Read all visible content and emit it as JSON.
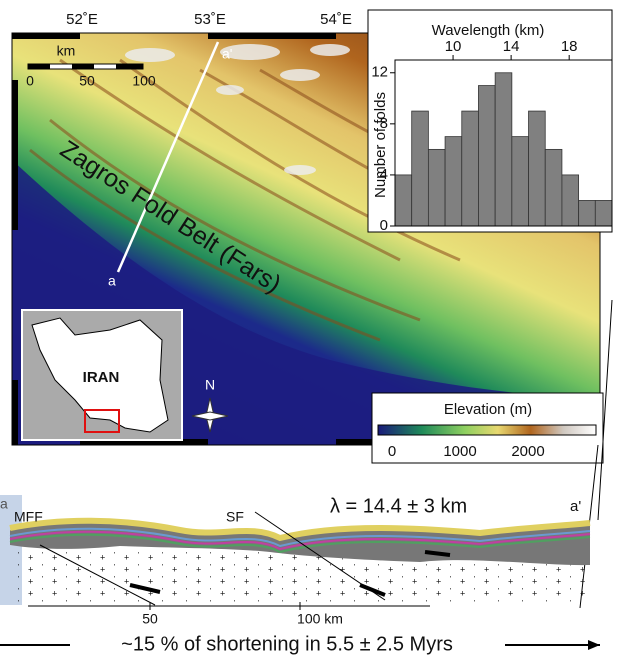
{
  "chart_data": {
    "type": "histogram",
    "xlabel": "Wavelength (km)",
    "ylabel": "Number of folds",
    "bins": [
      6,
      7.15,
      8.3,
      9.45,
      10.6,
      11.75,
      12.9,
      14.05,
      15.2,
      16.35,
      17.5,
      18.65,
      19.8,
      20.95
    ],
    "values": [
      4,
      9,
      6,
      7,
      9,
      11,
      12,
      7,
      9,
      6,
      4,
      2,
      2
    ],
    "color": "#808080",
    "xlim": [
      6,
      20.95
    ],
    "xticks": [
      10,
      14,
      18
    ],
    "ylim": [
      0,
      13
    ],
    "yticks": [
      0,
      4,
      8,
      12
    ]
  },
  "map": {
    "longitudes": [
      "52˚E",
      "53˚E",
      "54˚E"
    ],
    "scale": {
      "unit": "km",
      "ticks": [
        "0",
        "50",
        "100"
      ]
    },
    "profile_start": "a",
    "profile_end": "a'",
    "region_label": "Zagros Fold Belt (Fars)",
    "inset_label": "IRAN",
    "north": "N",
    "elevation": {
      "title": "Elevation (m)",
      "ticks": [
        "0",
        "1000",
        "2000"
      ]
    }
  },
  "section": {
    "start": "a",
    "end": "a'",
    "faults": [
      "MFF",
      "SF"
    ],
    "wavelength": "λ = 14.4 ± 3 km",
    "distance_ticks": [
      "50",
      "100 km"
    ],
    "caption": "~15 % of shortening in 5.5 ± 2.5 Myrs"
  }
}
